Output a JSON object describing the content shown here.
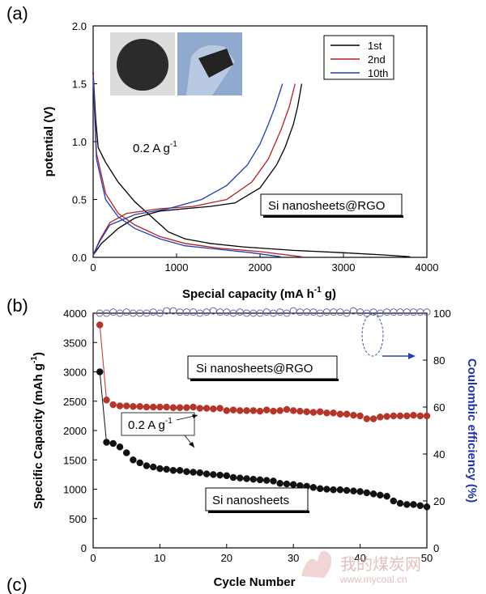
{
  "panels": {
    "a": "(a)",
    "b": "(b)",
    "c": "(c)"
  },
  "watermark": {
    "line1": "我的煤炭网",
    "line2": "www.mycoal.cn"
  },
  "chart_data": [
    {
      "type": "line",
      "panel": "(a)",
      "xlabel": "Special capacity (mA h",
      "xlabel_sup": "-1",
      "xlabel_tail": " g)",
      "ylabel": "potential (V)",
      "xlim": [
        0,
        4000
      ],
      "ylim": [
        0,
        2.0
      ],
      "xticks": [
        "0",
        "1000",
        "2000",
        "3000",
        "4000"
      ],
      "yticks": [
        "0.0",
        "0.5",
        "1.0",
        "1.5",
        "2.0"
      ],
      "annotation_rate": "0.2 A g",
      "annotation_rate_sup": "-1",
      "annotation_material": "Si nanosheets@RGO",
      "legend": {
        "position": "top-right"
      },
      "series": [
        {
          "name": "1st",
          "color": "#000000",
          "discharge": [
            [
              0,
              1.6
            ],
            [
              30,
              1.2
            ],
            [
              60,
              0.95
            ],
            [
              150,
              0.82
            ],
            [
              300,
              0.65
            ],
            [
              500,
              0.48
            ],
            [
              700,
              0.35
            ],
            [
              900,
              0.22
            ],
            [
              1100,
              0.16
            ],
            [
              1400,
              0.12
            ],
            [
              1800,
              0.09
            ],
            [
              2400,
              0.06
            ],
            [
              3000,
              0.04
            ],
            [
              3500,
              0.02
            ],
            [
              3800,
              0.005
            ]
          ],
          "charge": [
            [
              0,
              0.02
            ],
            [
              100,
              0.12
            ],
            [
              300,
              0.25
            ],
            [
              500,
              0.34
            ],
            [
              800,
              0.4
            ],
            [
              1100,
              0.42
            ],
            [
              1400,
              0.44
            ],
            [
              1700,
              0.47
            ],
            [
              2000,
              0.6
            ],
            [
              2200,
              0.8
            ],
            [
              2300,
              0.95
            ],
            [
              2400,
              1.15
            ],
            [
              2450,
              1.3
            ],
            [
              2500,
              1.5
            ]
          ]
        },
        {
          "name": "2nd",
          "color": "#b22222",
          "discharge": [
            [
              0,
              1.58
            ],
            [
              40,
              0.9
            ],
            [
              150,
              0.55
            ],
            [
              300,
              0.38
            ],
            [
              500,
              0.28
            ],
            [
              800,
              0.18
            ],
            [
              1100,
              0.12
            ],
            [
              1500,
              0.08
            ],
            [
              2000,
              0.05
            ],
            [
              2500,
              0.005
            ]
          ],
          "charge": [
            [
              0,
              0.02
            ],
            [
              80,
              0.15
            ],
            [
              200,
              0.3
            ],
            [
              400,
              0.38
            ],
            [
              800,
              0.42
            ],
            [
              1200,
              0.44
            ],
            [
              1600,
              0.5
            ],
            [
              1900,
              0.65
            ],
            [
              2100,
              0.85
            ],
            [
              2250,
              1.1
            ],
            [
              2350,
              1.3
            ],
            [
              2420,
              1.5
            ]
          ]
        },
        {
          "name": "10th",
          "color": "#1f3fb5",
          "discharge": [
            [
              0,
              1.55
            ],
            [
              40,
              0.85
            ],
            [
              150,
              0.5
            ],
            [
              300,
              0.35
            ],
            [
              500,
              0.25
            ],
            [
              800,
              0.16
            ],
            [
              1100,
              0.1
            ],
            [
              1500,
              0.07
            ],
            [
              1900,
              0.04
            ],
            [
              2250,
              0.005
            ]
          ],
          "charge": [
            [
              0,
              0.02
            ],
            [
              80,
              0.14
            ],
            [
              200,
              0.28
            ],
            [
              500,
              0.37
            ],
            [
              900,
              0.42
            ],
            [
              1300,
              0.5
            ],
            [
              1600,
              0.62
            ],
            [
              1850,
              0.8
            ],
            [
              2000,
              0.98
            ],
            [
              2100,
              1.15
            ],
            [
              2180,
              1.3
            ],
            [
              2270,
              1.5
            ]
          ]
        }
      ]
    },
    {
      "type": "scatter",
      "panel": "(b)",
      "xlabel": "Cycle Number",
      "ylabel": "Specific Capacity (mAh g",
      "ylabel_sup": "-1",
      "ylabel_tail": ")",
      "y2label": "Coulombic efficiency (%)",
      "xlim": [
        0,
        50
      ],
      "ylim": [
        0,
        4000
      ],
      "y2lim": [
        0,
        100
      ],
      "xticks": [
        "0",
        "10",
        "20",
        "30",
        "40",
        "50"
      ],
      "yticks": [
        "0",
        "500",
        "1000",
        "1500",
        "2000",
        "2500",
        "3000",
        "3500",
        "4000"
      ],
      "y2ticks": [
        "0",
        "20",
        "40",
        "60",
        "80",
        "100"
      ],
      "annotation_rgo": "Si nanosheets@RGO",
      "annotation_rate": "0.2 A g",
      "annotation_rate_sup": "-1",
      "annotation_si": "Si nanosheets",
      "series": [
        {
          "name": "Si nanosheets@RGO capacity",
          "color": "#b5352b",
          "x": [
            1,
            2,
            3,
            4,
            5,
            6,
            7,
            8,
            9,
            10,
            11,
            12,
            13,
            14,
            15,
            16,
            17,
            18,
            19,
            20,
            21,
            22,
            23,
            24,
            25,
            26,
            27,
            28,
            29,
            30,
            31,
            32,
            33,
            34,
            35,
            36,
            37,
            38,
            39,
            40,
            41,
            42,
            43,
            44,
            45,
            46,
            47,
            48,
            49,
            50
          ],
          "values": [
            3800,
            2520,
            2440,
            2420,
            2420,
            2410,
            2410,
            2400,
            2400,
            2400,
            2400,
            2390,
            2390,
            2390,
            2400,
            2380,
            2380,
            2370,
            2380,
            2340,
            2350,
            2340,
            2340,
            2340,
            2330,
            2350,
            2330,
            2340,
            2360,
            2340,
            2330,
            2320,
            2310,
            2320,
            2300,
            2300,
            2280,
            2280,
            2260,
            2250,
            2200,
            2200,
            2230,
            2240,
            2250,
            2250,
            2250,
            2260,
            2250,
            2250
          ]
        },
        {
          "name": "Si nanosheets capacity",
          "color": "#111111",
          "x": [
            1,
            2,
            3,
            4,
            5,
            6,
            7,
            8,
            9,
            10,
            11,
            12,
            13,
            14,
            15,
            16,
            17,
            18,
            19,
            20,
            21,
            22,
            23,
            24,
            25,
            26,
            27,
            28,
            29,
            30,
            31,
            32,
            33,
            34,
            35,
            36,
            37,
            38,
            39,
            40,
            41,
            42,
            43,
            44,
            45,
            46,
            47,
            48,
            49,
            50
          ],
          "values": [
            3000,
            1800,
            1780,
            1720,
            1620,
            1500,
            1450,
            1400,
            1380,
            1350,
            1340,
            1320,
            1320,
            1300,
            1290,
            1280,
            1260,
            1250,
            1240,
            1230,
            1200,
            1190,
            1180,
            1170,
            1160,
            1150,
            1140,
            1100,
            1090,
            1080,
            1060,
            1050,
            1030,
            1010,
            1000,
            990,
            990,
            980,
            970,
            960,
            940,
            920,
            900,
            880,
            800,
            760,
            740,
            740,
            720,
            700
          ]
        },
        {
          "name": "Coulombic efficiency",
          "color": "#6666aa",
          "axis": "y2",
          "hollow": true,
          "x": [
            1,
            2,
            3,
            4,
            5,
            6,
            7,
            8,
            9,
            10,
            11,
            12,
            13,
            14,
            15,
            16,
            17,
            18,
            19,
            20,
            21,
            22,
            23,
            24,
            25,
            26,
            27,
            28,
            29,
            30,
            31,
            32,
            33,
            34,
            35,
            36,
            37,
            38,
            39,
            40,
            41,
            42,
            43,
            44,
            45,
            46,
            47,
            48,
            49,
            50
          ],
          "values": [
            100,
            100,
            100.5,
            100,
            100.5,
            100,
            100,
            100,
            100.5,
            100,
            101,
            101,
            100.5,
            100.5,
            100.5,
            100,
            100.5,
            101,
            100.5,
            100.5,
            100,
            100.5,
            100,
            100,
            100,
            100.5,
            100,
            100.5,
            100,
            101,
            100.5,
            100.5,
            100.5,
            100,
            100.5,
            100.5,
            100.5,
            100,
            101,
            100.5,
            100,
            100.5,
            100,
            100.5,
            100.5,
            100.5,
            100.5,
            100.5,
            100.5,
            100.5
          ]
        }
      ]
    }
  ]
}
